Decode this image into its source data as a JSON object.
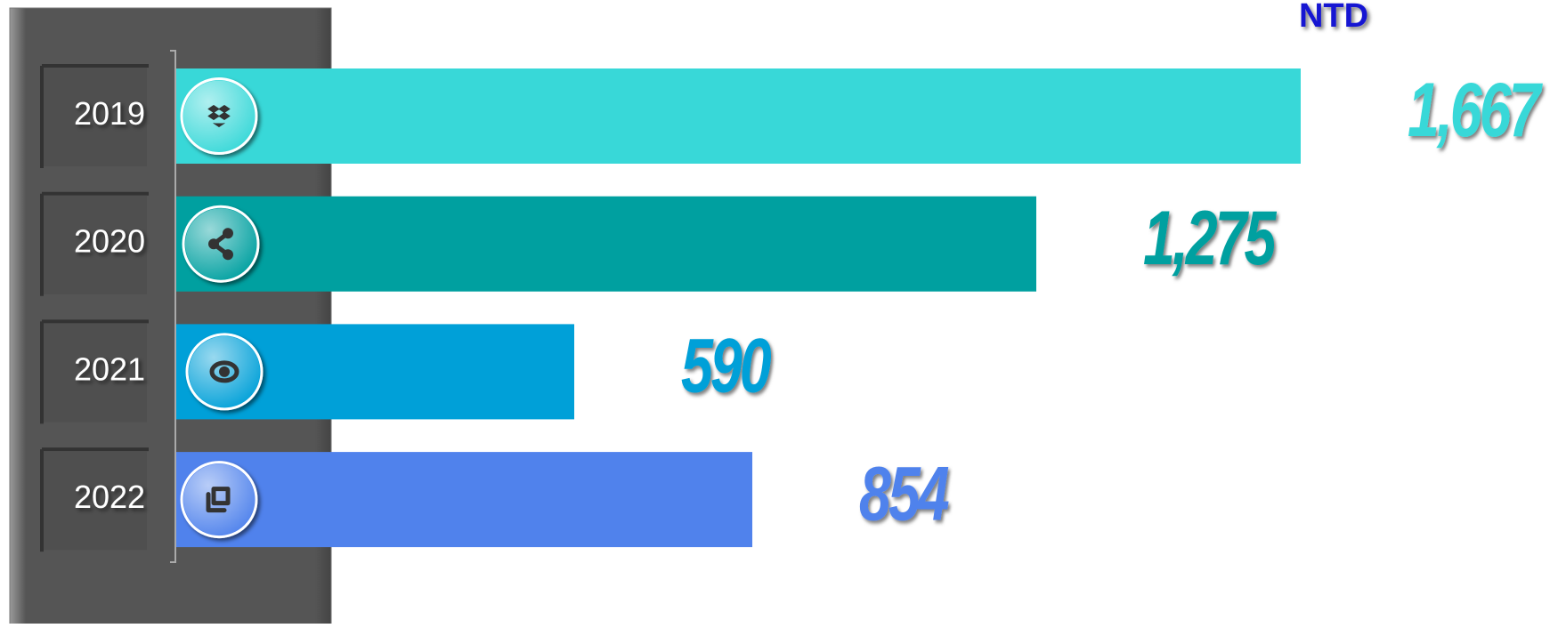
{
  "chart_data": {
    "type": "bar",
    "orientation": "horizontal",
    "unit_label": "NTD",
    "categories": [
      "2019",
      "2020",
      "2021",
      "2022"
    ],
    "values": [
      1667,
      1275,
      590,
      854
    ],
    "value_labels": [
      "1,667",
      "1,275",
      "590",
      "854"
    ],
    "colors": [
      "#38d8d8",
      "#00a0a0",
      "#00a0d8",
      "#5082ec"
    ]
  }
}
